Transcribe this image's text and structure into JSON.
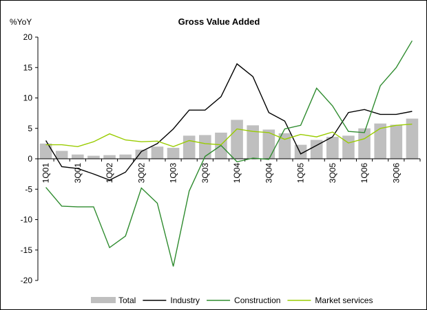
{
  "chart_data": {
    "type": "bar",
    "title": "Gross Value Added",
    "y_label": "%YoY",
    "categories": [
      "1Q01",
      null,
      "3Q01",
      null,
      "1Q02",
      null,
      "3Q02",
      null,
      "1Q03",
      null,
      "3Q03",
      null,
      "1Q04",
      null,
      "3Q04",
      null,
      "1Q05",
      null,
      "3Q05",
      null,
      "1Q06",
      null,
      "3Q06",
      null
    ],
    "series": [
      {
        "name": "Total",
        "type": "bar",
        "color": "#bfbfbf",
        "values": [
          2.5,
          1.3,
          0.7,
          0.5,
          0.6,
          0.7,
          1.5,
          2.0,
          1.8,
          3.8,
          3.9,
          4.3,
          6.4,
          5.5,
          4.8,
          4.2,
          2.3,
          3.1,
          3.6,
          3.8,
          5.0,
          5.8,
          5.6,
          6.6
        ]
      },
      {
        "name": "Industry",
        "type": "line",
        "color": "#000000",
        "values": [
          3.0,
          -1.3,
          -1.6,
          -2.5,
          -3.5,
          -2.2,
          1.2,
          2.5,
          4.9,
          8.0,
          8.0,
          10.2,
          15.6,
          13.5,
          7.6,
          6.2,
          0.8,
          2.2,
          3.6,
          7.6,
          8.1,
          7.3,
          7.3,
          7.8
        ]
      },
      {
        "name": "Construction",
        "type": "line",
        "color": "#2e8b2e",
        "values": [
          -4.7,
          -7.8,
          -7.9,
          -7.9,
          -14.6,
          -12.7,
          -4.8,
          -7.3,
          -17.7,
          -5.3,
          0.4,
          2.2,
          -0.5,
          0.1,
          -0.1,
          4.9,
          5.5,
          11.6,
          8.7,
          4.5,
          4.3,
          12.0,
          15.0,
          19.4
        ]
      },
      {
        "name": "Market services",
        "type": "line",
        "color": "#99cc00",
        "values": [
          2.3,
          2.3,
          2.0,
          2.8,
          4.1,
          3.1,
          2.8,
          2.9,
          2.0,
          3.0,
          2.5,
          2.3,
          4.9,
          4.5,
          4.3,
          3.2,
          4.0,
          3.6,
          4.4,
          2.6,
          3.3,
          5.0,
          5.5,
          5.7
        ]
      }
    ],
    "ylim": [
      -20,
      20
    ],
    "yticks": [
      -20,
      -15,
      -10,
      -5,
      0,
      5,
      10,
      15,
      20
    ],
    "grid": false,
    "legend": "bottom"
  }
}
